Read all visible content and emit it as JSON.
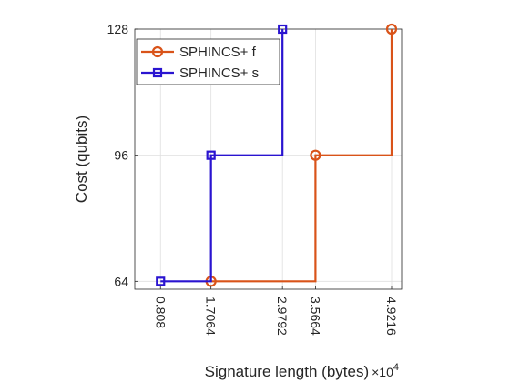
{
  "chart_data": {
    "type": "line",
    "step": "post",
    "xlabel": "Signature length (bytes)",
    "x_multiplier_label": "×10",
    "x_multiplier_exponent": "4",
    "ylabel": "Cost (qubits)",
    "x_ticks": [
      0.808,
      1.7064,
      2.9792,
      3.5664,
      4.9216
    ],
    "x_tick_labels": [
      "0.808",
      "1.7064",
      "2.9792",
      "3.5664",
      "4.9216"
    ],
    "y_ticks": [
      64,
      96,
      128
    ],
    "y_tick_labels": [
      "64",
      "96",
      "128"
    ],
    "xlim": [
      0.35,
      5.1
    ],
    "ylim": [
      62,
      128
    ],
    "grid": true,
    "legend_position": "top-left",
    "series": [
      {
        "name": "SPHINCS+ f",
        "color": "#D95319",
        "marker": "circle",
        "points": [
          [
            1.7064,
            64
          ],
          [
            3.5664,
            96
          ],
          [
            4.9216,
            128
          ]
        ]
      },
      {
        "name": "SPHINCS+ s",
        "color": "#2A14D0",
        "marker": "square",
        "points": [
          [
            0.808,
            64
          ],
          [
            1.7064,
            96
          ],
          [
            2.9792,
            128
          ]
        ]
      }
    ]
  }
}
